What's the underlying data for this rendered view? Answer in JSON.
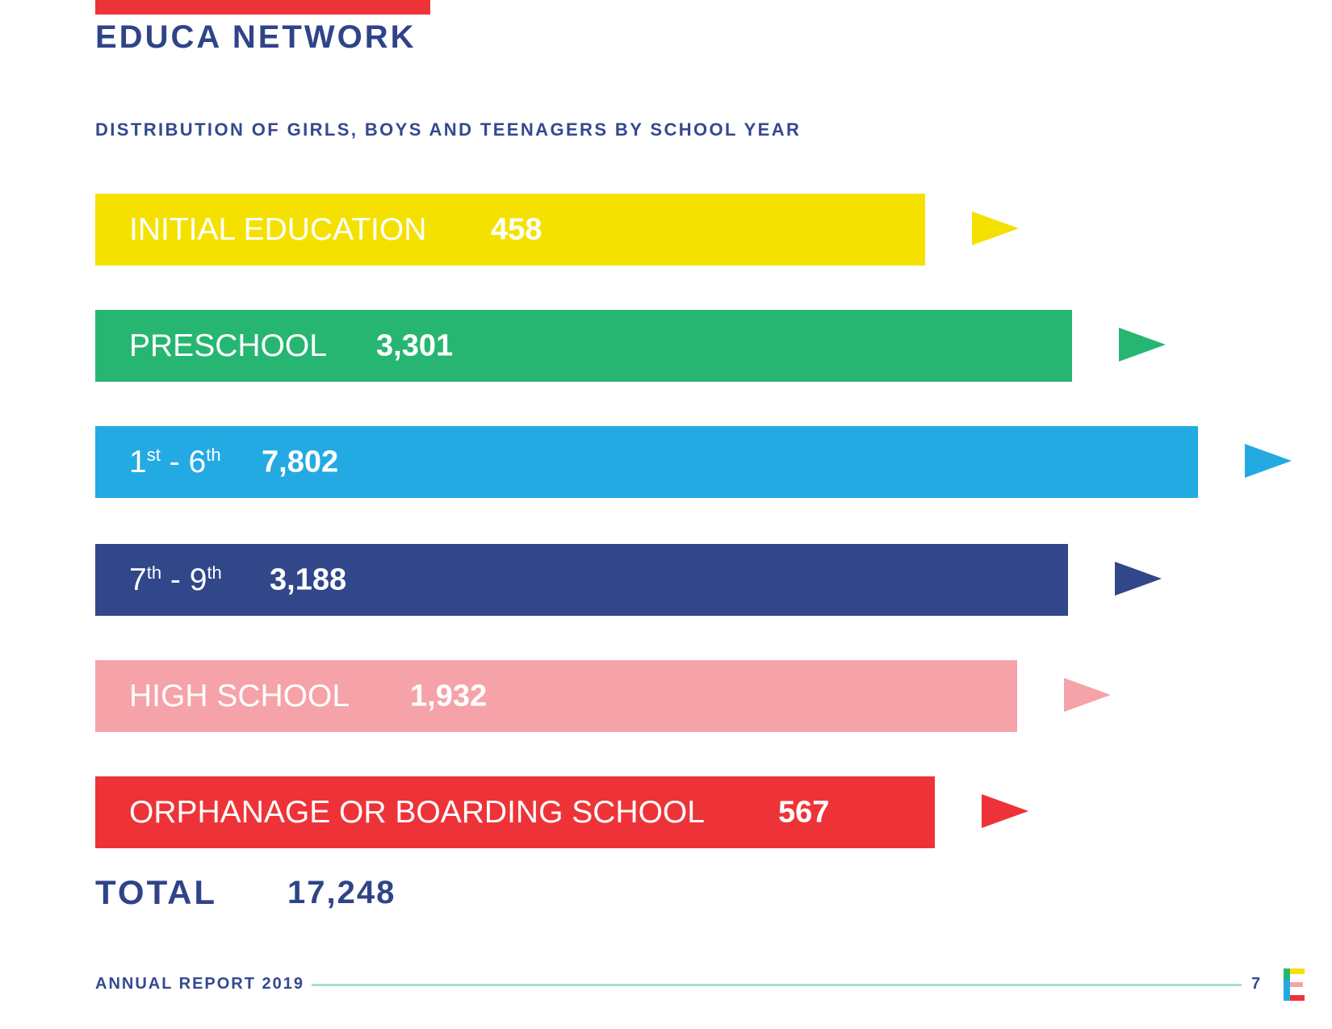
{
  "header": {
    "title": "EDUCA NETWORK",
    "subtitle": "DISTRIBUTION OF GIRLS, BOYS AND TEENAGERS BY SCHOOL YEAR"
  },
  "colors": {
    "accent_red": "#ee3338",
    "title_navy": "#2f4488",
    "footer_line": "#a6ddd4"
  },
  "chart_data": {
    "type": "bar",
    "orientation": "horizontal",
    "title": "DISTRIBUTION OF GIRLS, BOYS AND TEENAGERS BY SCHOOL YEAR",
    "categories": [
      "INITIAL EDUCATION",
      "PRESCHOOL",
      "1st - 6th",
      "7th - 9th",
      "HIGH SCHOOL",
      "ORPHANAGE OR BOARDING SCHOOL"
    ],
    "values": [
      458,
      3301,
      7802,
      3188,
      1932,
      567
    ],
    "value_labels": [
      "458",
      "3,301",
      "7,802",
      "3,188",
      "1,932",
      "567"
    ],
    "colors": [
      "#f5e100",
      "#27b672",
      "#24aae2",
      "#31478a",
      "#f5a3a8",
      "#ee3338"
    ],
    "grid": false,
    "legend": "none",
    "total_label": "TOTAL",
    "total_value": "17,248"
  },
  "footer": {
    "report": "ANNUAL REPORT 2019",
    "page": "7",
    "logo_icon": "educa-e-logo-icon"
  }
}
